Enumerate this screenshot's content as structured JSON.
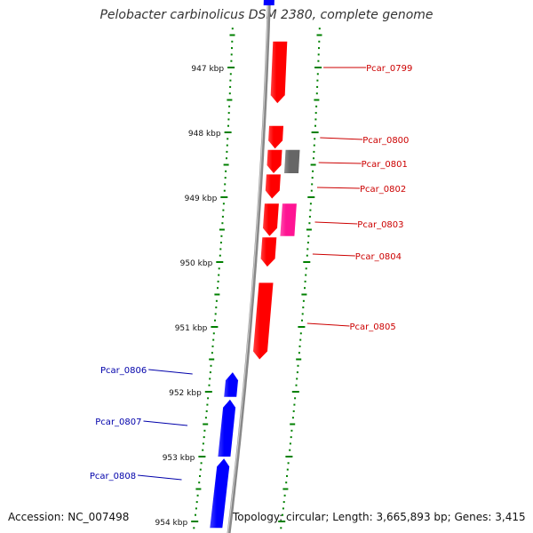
{
  "title": "Pelobacter carbinolicus DSM 2380, complete genome",
  "footer": {
    "accession": "Accession: NC_007498",
    "topology": "Topology: circular; Length: 3,665,893 bp; Genes: 3,415"
  },
  "colors": {
    "forward_strand": "#ff0000",
    "reverse_strand": "#0000ff",
    "pseudogene": "#666666",
    "rna_gene": "#ff1493",
    "backbone": "#888888",
    "ticks": "#008000",
    "forward_label": "#cc0000",
    "reverse_label": "#0000aa"
  },
  "scale": {
    "labels": [
      {
        "kbp": 947,
        "text": "947 kbp"
      },
      {
        "kbp": 948,
        "text": "948 kbp"
      },
      {
        "kbp": 949,
        "text": "949 kbp"
      },
      {
        "kbp": 950,
        "text": "950 kbp"
      },
      {
        "kbp": 951,
        "text": "951 kbp"
      },
      {
        "kbp": 952,
        "text": "952 kbp"
      },
      {
        "kbp": 953,
        "text": "953 kbp"
      },
      {
        "kbp": 954,
        "text": "954 kbp"
      }
    ]
  },
  "genes": [
    {
      "name": "Pcar_0799",
      "strand": "+",
      "type": "cds",
      "start_kbp": 946.6,
      "end_kbp": 947.55
    },
    {
      "name": "Pcar_0800",
      "strand": "+",
      "type": "cds",
      "start_kbp": 947.9,
      "end_kbp": 948.25
    },
    {
      "name": "Pcar_0801",
      "strand": "+",
      "type": "cds",
      "start_kbp": 948.27,
      "end_kbp": 948.63
    },
    {
      "name": "Pcar_0801",
      "strand": "+",
      "type": "pseudo",
      "start_kbp": 948.27,
      "end_kbp": 948.63
    },
    {
      "name": "Pcar_0802",
      "strand": "+",
      "type": "cds",
      "start_kbp": 948.65,
      "end_kbp": 949.02
    },
    {
      "name": "Pcar_0803",
      "strand": "+",
      "type": "cds",
      "start_kbp": 949.1,
      "end_kbp": 949.6
    },
    {
      "name": "Pcar_0803",
      "strand": "+",
      "type": "rna",
      "start_kbp": 949.1,
      "end_kbp": 949.6
    },
    {
      "name": "Pcar_0804",
      "strand": "+",
      "type": "cds",
      "start_kbp": 949.62,
      "end_kbp": 950.07
    },
    {
      "name": "Pcar_0805",
      "strand": "+",
      "type": "cds",
      "start_kbp": 950.32,
      "end_kbp": 951.5
    },
    {
      "name": "Pcar_0806",
      "strand": "-",
      "type": "cds",
      "start_kbp": 951.7,
      "end_kbp": 952.08
    },
    {
      "name": "Pcar_0807",
      "strand": "-",
      "type": "cds",
      "start_kbp": 952.12,
      "end_kbp": 953.0
    },
    {
      "name": "Pcar_0808",
      "strand": "-",
      "type": "cds",
      "start_kbp": 953.03,
      "end_kbp": 954.1
    }
  ],
  "labels": [
    {
      "text": "Pcar_0799",
      "strand": "+"
    },
    {
      "text": "Pcar_0800",
      "strand": "+"
    },
    {
      "text": "Pcar_0801",
      "strand": "+"
    },
    {
      "text": "Pcar_0802",
      "strand": "+"
    },
    {
      "text": "Pcar_0803",
      "strand": "+"
    },
    {
      "text": "Pcar_0804",
      "strand": "+"
    },
    {
      "text": "Pcar_0805",
      "strand": "+"
    },
    {
      "text": "Pcar_0806",
      "strand": "-"
    },
    {
      "text": "Pcar_0807",
      "strand": "-"
    },
    {
      "text": "Pcar_0808",
      "strand": "-"
    }
  ]
}
